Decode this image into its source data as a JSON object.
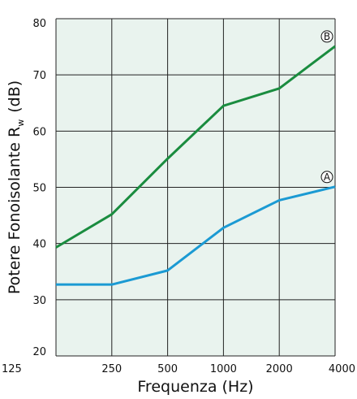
{
  "chart_data": {
    "type": "line",
    "categories": [
      "125",
      "250",
      "500",
      "1000",
      "2000",
      "4000"
    ],
    "xlabel": "Frequenza (Hz)",
    "ylabel_main": "Potere Fonoisolante R",
    "ylabel_subscript": "w",
    "ylabel_unit": "(dB)",
    "y_ticks": [
      "20",
      "30",
      "40",
      "50",
      "60",
      "70",
      "80"
    ],
    "ylim": [
      20,
      80
    ],
    "grid": true,
    "background_color": "#e9f3ee",
    "grid_color": "#222222",
    "series": [
      {
        "name": "A",
        "color": "#1b9ad3",
        "values": [
          32.7,
          32.7,
          35.2,
          42.8,
          47.7,
          50.1
        ]
      },
      {
        "name": "B",
        "color": "#1a8c3f",
        "values": [
          39.3,
          45.2,
          55.1,
          64.5,
          67.6,
          75.1
        ]
      }
    ]
  }
}
